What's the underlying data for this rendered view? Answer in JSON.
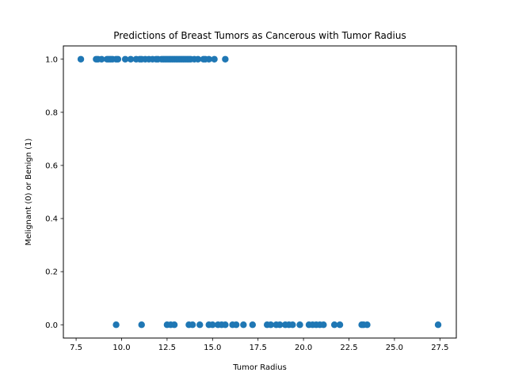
{
  "chart_data": {
    "type": "scatter",
    "title": "Predictions of Breast Tumors as Cancerous with Tumor Radius",
    "xlabel": "Tumor Radius",
    "ylabel": "Melignant (0) or Benign (1)",
    "xlim": [
      6.8,
      28.4
    ],
    "ylim": [
      -0.05,
      1.05
    ],
    "xticks": [
      7.5,
      10.0,
      12.5,
      15.0,
      17.5,
      20.0,
      22.5,
      25.0,
      27.5
    ],
    "xtick_labels": [
      "7.5",
      "10.0",
      "12.5",
      "15.0",
      "17.5",
      "20.0",
      "22.5",
      "25.0",
      "27.5"
    ],
    "yticks": [
      0.0,
      0.2,
      0.4,
      0.6,
      0.8,
      1.0
    ],
    "ytick_labels": [
      "0.0",
      "0.2",
      "0.4",
      "0.6",
      "0.8",
      "1.0"
    ],
    "grid": false,
    "marker_color": "#1f77b4",
    "series": [
      {
        "x": [
          7.76,
          8.6,
          8.7,
          8.9,
          9.2,
          9.3,
          9.4,
          9.5,
          9.7,
          9.8,
          10.2,
          10.5,
          10.8,
          11.0,
          11.1,
          11.3,
          11.5,
          11.7,
          11.9,
          12.0,
          12.2,
          12.3,
          12.4,
          12.5,
          12.6,
          12.7,
          12.8,
          12.9,
          13.0,
          13.1,
          13.2,
          13.3,
          13.4,
          13.5,
          13.6,
          13.7,
          13.8,
          14.0,
          14.2,
          14.5,
          14.6,
          14.8,
          15.1,
          15.7
        ],
        "y": [
          1,
          1,
          1,
          1,
          1,
          1,
          1,
          1,
          1,
          1,
          1,
          1,
          1,
          1,
          1,
          1,
          1,
          1,
          1,
          1,
          1,
          1,
          1,
          1,
          1,
          1,
          1,
          1,
          1,
          1,
          1,
          1,
          1,
          1,
          1,
          1,
          1,
          1,
          1,
          1,
          1,
          1,
          1,
          1
        ]
      },
      {
        "x": [
          9.7,
          11.1,
          12.5,
          12.7,
          12.9,
          13.7,
          13.9,
          14.3,
          14.8,
          15.0,
          15.3,
          15.5,
          15.7,
          16.1,
          16.3,
          16.7,
          17.2,
          18.0,
          18.2,
          18.5,
          18.7,
          19.0,
          19.2,
          19.4,
          19.8,
          20.3,
          20.5,
          20.7,
          20.9,
          21.1,
          21.7,
          22.0,
          23.2,
          23.3,
          23.5,
          27.4
        ],
        "y": [
          0,
          0,
          0,
          0,
          0,
          0,
          0,
          0,
          0,
          0,
          0,
          0,
          0,
          0,
          0,
          0,
          0,
          0,
          0,
          0,
          0,
          0,
          0,
          0,
          0,
          0,
          0,
          0,
          0,
          0,
          0,
          0,
          0,
          0,
          0,
          0
        ]
      }
    ]
  }
}
